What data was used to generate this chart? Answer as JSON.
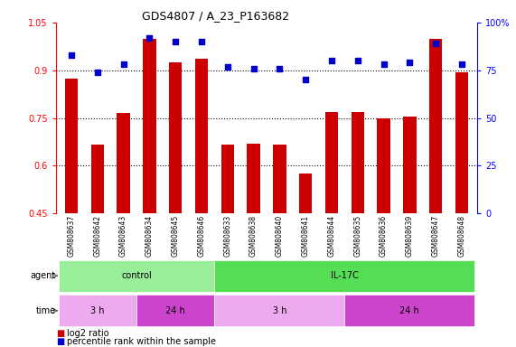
{
  "title": "GDS4807 / A_23_P163682",
  "samples": [
    "GSM808637",
    "GSM808642",
    "GSM808643",
    "GSM808634",
    "GSM808645",
    "GSM808646",
    "GSM808633",
    "GSM808638",
    "GSM808640",
    "GSM808641",
    "GSM808644",
    "GSM808635",
    "GSM808636",
    "GSM808639",
    "GSM808647",
    "GSM808648"
  ],
  "log2_ratio": [
    0.875,
    0.665,
    0.765,
    1.0,
    0.925,
    0.935,
    0.665,
    0.668,
    0.665,
    0.575,
    0.77,
    0.77,
    0.75,
    0.755,
    1.0,
    0.895
  ],
  "percentile": [
    83,
    74,
    78,
    92,
    90,
    90,
    77,
    76,
    76,
    70,
    80,
    80,
    78,
    79,
    89,
    78
  ],
  "ylim_left": [
    0.45,
    1.05
  ],
  "ylim_right": [
    0,
    100
  ],
  "yticks_left": [
    0.45,
    0.6,
    0.75,
    0.9,
    1.05
  ],
  "yticks_right": [
    0,
    25,
    50,
    75,
    100
  ],
  "ytick_labels_left": [
    "0.45",
    "0.6",
    "0.75",
    "0.9",
    "1.05"
  ],
  "ytick_labels_right": [
    "0",
    "25",
    "50",
    "75",
    "100%"
  ],
  "hgrid_lines": [
    0.6,
    0.75,
    0.9
  ],
  "bar_color": "#cc0000",
  "dot_color": "#0000cc",
  "agent_groups": [
    {
      "label": "control",
      "start": 0,
      "end": 6,
      "color": "#99ee99"
    },
    {
      "label": "IL-17C",
      "start": 6,
      "end": 16,
      "color": "#55dd55"
    }
  ],
  "time_groups": [
    {
      "label": "3 h",
      "start": 0,
      "end": 3,
      "color": "#eeaaee"
    },
    {
      "label": "24 h",
      "start": 3,
      "end": 6,
      "color": "#cc44cc"
    },
    {
      "label": "3 h",
      "start": 6,
      "end": 11,
      "color": "#eeaaee"
    },
    {
      "label": "24 h",
      "start": 11,
      "end": 16,
      "color": "#cc44cc"
    }
  ],
  "agent_label": "agent",
  "time_label": "time",
  "legend_items": [
    {
      "color": "#cc0000",
      "label": "log2 ratio"
    },
    {
      "color": "#0000cc",
      "label": "percentile rank within the sample"
    }
  ],
  "label_bg": "#cccccc",
  "fig_bg": "#ffffff"
}
